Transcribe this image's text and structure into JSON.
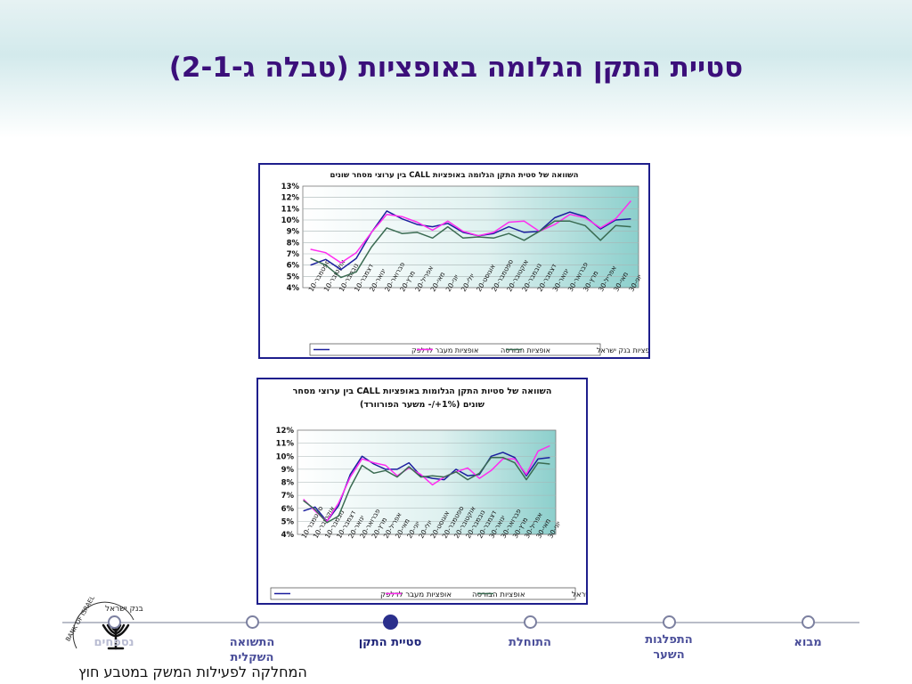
{
  "slide": {
    "title": "סטיית התקן הגלומה באופציות (טבלה ג-2-1)",
    "department": "המחלקה לפעילות המשק במטבע חוץ"
  },
  "logo": {
    "text_top": "בנק ישראל",
    "text_bottom": "BANK OF ISRAEL"
  },
  "nav": {
    "items": [
      {
        "label": "נספחים",
        "active": false
      },
      {
        "label": "התשואה השקלית",
        "active": false
      },
      {
        "label": "סטיית התקן",
        "active": true
      },
      {
        "label": "התוחלת",
        "active": false
      },
      {
        "label": "התפלגות השער",
        "active": false
      },
      {
        "label": "מבוא",
        "active": false
      }
    ]
  },
  "colors": {
    "series_dalpak": "#1b1f9e",
    "series_bursa": "#ff2cf0",
    "series_boi": "#3a6b52",
    "title": "#3b0f7a",
    "nav_active": "#2a2f8c"
  },
  "chart_data": [
    {
      "type": "line",
      "title": "השוואה של סטית התקן הגלומה באופציות CALL בין ערוצי מסחר שונים",
      "categories": [
        "ספטמבר-10",
        "אוקטובר-10",
        "נובמבר-10",
        "דצמבר-10",
        "ינואר-20",
        "פברואר-20",
        "מרץ-20",
        "אפריל-20",
        "מאי-20",
        "יוני-20",
        "יולי-20",
        "אוגוסט-20",
        "ספטמבר-20",
        "אוקטובר-20",
        "נובמבר-20",
        "דצמבר-20",
        "ינואר-30",
        "פברואר-30",
        "מרץ-30",
        "אפריל-30",
        "מאי-30",
        "יוני-30"
      ],
      "y_ticks": [
        "4%",
        "5%",
        "6%",
        "7%",
        "8%",
        "9%",
        "10%",
        "11%",
        "12%",
        "13%"
      ],
      "ylim": [
        4,
        13
      ],
      "legend": "bottom",
      "series": [
        {
          "name": "אופציות מעבר לדלפק",
          "color_key": "series_dalpak",
          "values": [
            6.0,
            6.5,
            5.6,
            6.6,
            8.9,
            10.8,
            10.1,
            9.6,
            9.4,
            9.7,
            8.9,
            8.6,
            8.8,
            9.4,
            8.9,
            9.0,
            10.2,
            10.7,
            10.3,
            9.2,
            10.0,
            10.1
          ]
        },
        {
          "name": "אופציות הבורסה",
          "color_key": "series_bursa",
          "values": [
            7.4,
            7.1,
            6.2,
            7.1,
            8.9,
            10.5,
            10.3,
            9.8,
            9.1,
            9.9,
            9.0,
            8.6,
            8.9,
            9.8,
            9.9,
            9.0,
            9.6,
            10.5,
            10.2,
            9.3,
            10.1,
            11.7
          ]
        },
        {
          "name": "אופציות בנק ישראל",
          "color_key": "series_boi",
          "values": [
            6.6,
            6.0,
            4.9,
            5.4,
            7.6,
            9.3,
            8.8,
            8.9,
            8.4,
            9.4,
            8.4,
            8.5,
            8.4,
            8.8,
            8.2,
            9.0,
            9.9,
            9.9,
            9.5,
            8.2,
            9.5,
            9.4
          ]
        }
      ]
    },
    {
      "type": "line",
      "title": "השוואה של סטיות התקן הגלומות באופציות CALL בין ערוצי מסחר",
      "subtitle": "שונים (1%+/-  משער הפורוורד)",
      "categories": [
        "ספטמבר-10",
        "אוקטובר-10",
        "נובמבר-10",
        "דצמבר-10",
        "ינואר-20",
        "פברואר-20",
        "מרץ-20",
        "אפריל-20",
        "מאי-20",
        "יוני-20",
        "יולי-20",
        "אוגוסט-20",
        "ספטמבר-20",
        "אוקטובר-20",
        "נובמבר-20",
        "דצמבר-20",
        "ינואר-30",
        "פברואר-30",
        "מרץ-30",
        "אפריל-30",
        "מאי-30",
        "יוני-30"
      ],
      "y_ticks": [
        "4%",
        "5%",
        "6%",
        "7%",
        "8%",
        "9%",
        "10%",
        "11%",
        "12%"
      ],
      "ylim": [
        4,
        12
      ],
      "legend": "bottom",
      "series": [
        {
          "name": "אופציות מעבר לדלפק",
          "color_key": "series_dalpak",
          "values": [
            5.8,
            6.1,
            5.0,
            6.2,
            8.6,
            10.0,
            9.4,
            9.0,
            9.0,
            9.5,
            8.5,
            8.3,
            8.2,
            9.0,
            8.5,
            8.6,
            10.0,
            10.3,
            9.9,
            8.5,
            9.8,
            9.9
          ]
        },
        {
          "name": "אופציות הבורסה",
          "color_key": "series_bursa",
          "values": [
            6.7,
            5.8,
            5.0,
            6.4,
            8.4,
            9.8,
            9.5,
            9.3,
            8.5,
            9.1,
            8.6,
            7.8,
            8.4,
            8.8,
            9.1,
            8.3,
            8.9,
            9.8,
            9.8,
            8.6,
            10.4,
            10.8
          ]
        },
        {
          "name": "אופציות בנק ישראל",
          "color_key": "series_boi",
          "values": [
            6.6,
            5.9,
            4.9,
            5.4,
            7.6,
            9.3,
            8.7,
            8.9,
            8.4,
            9.2,
            8.4,
            8.5,
            8.4,
            8.8,
            8.2,
            8.7,
            9.9,
            9.9,
            9.5,
            8.2,
            9.5,
            9.4
          ]
        }
      ]
    }
  ]
}
